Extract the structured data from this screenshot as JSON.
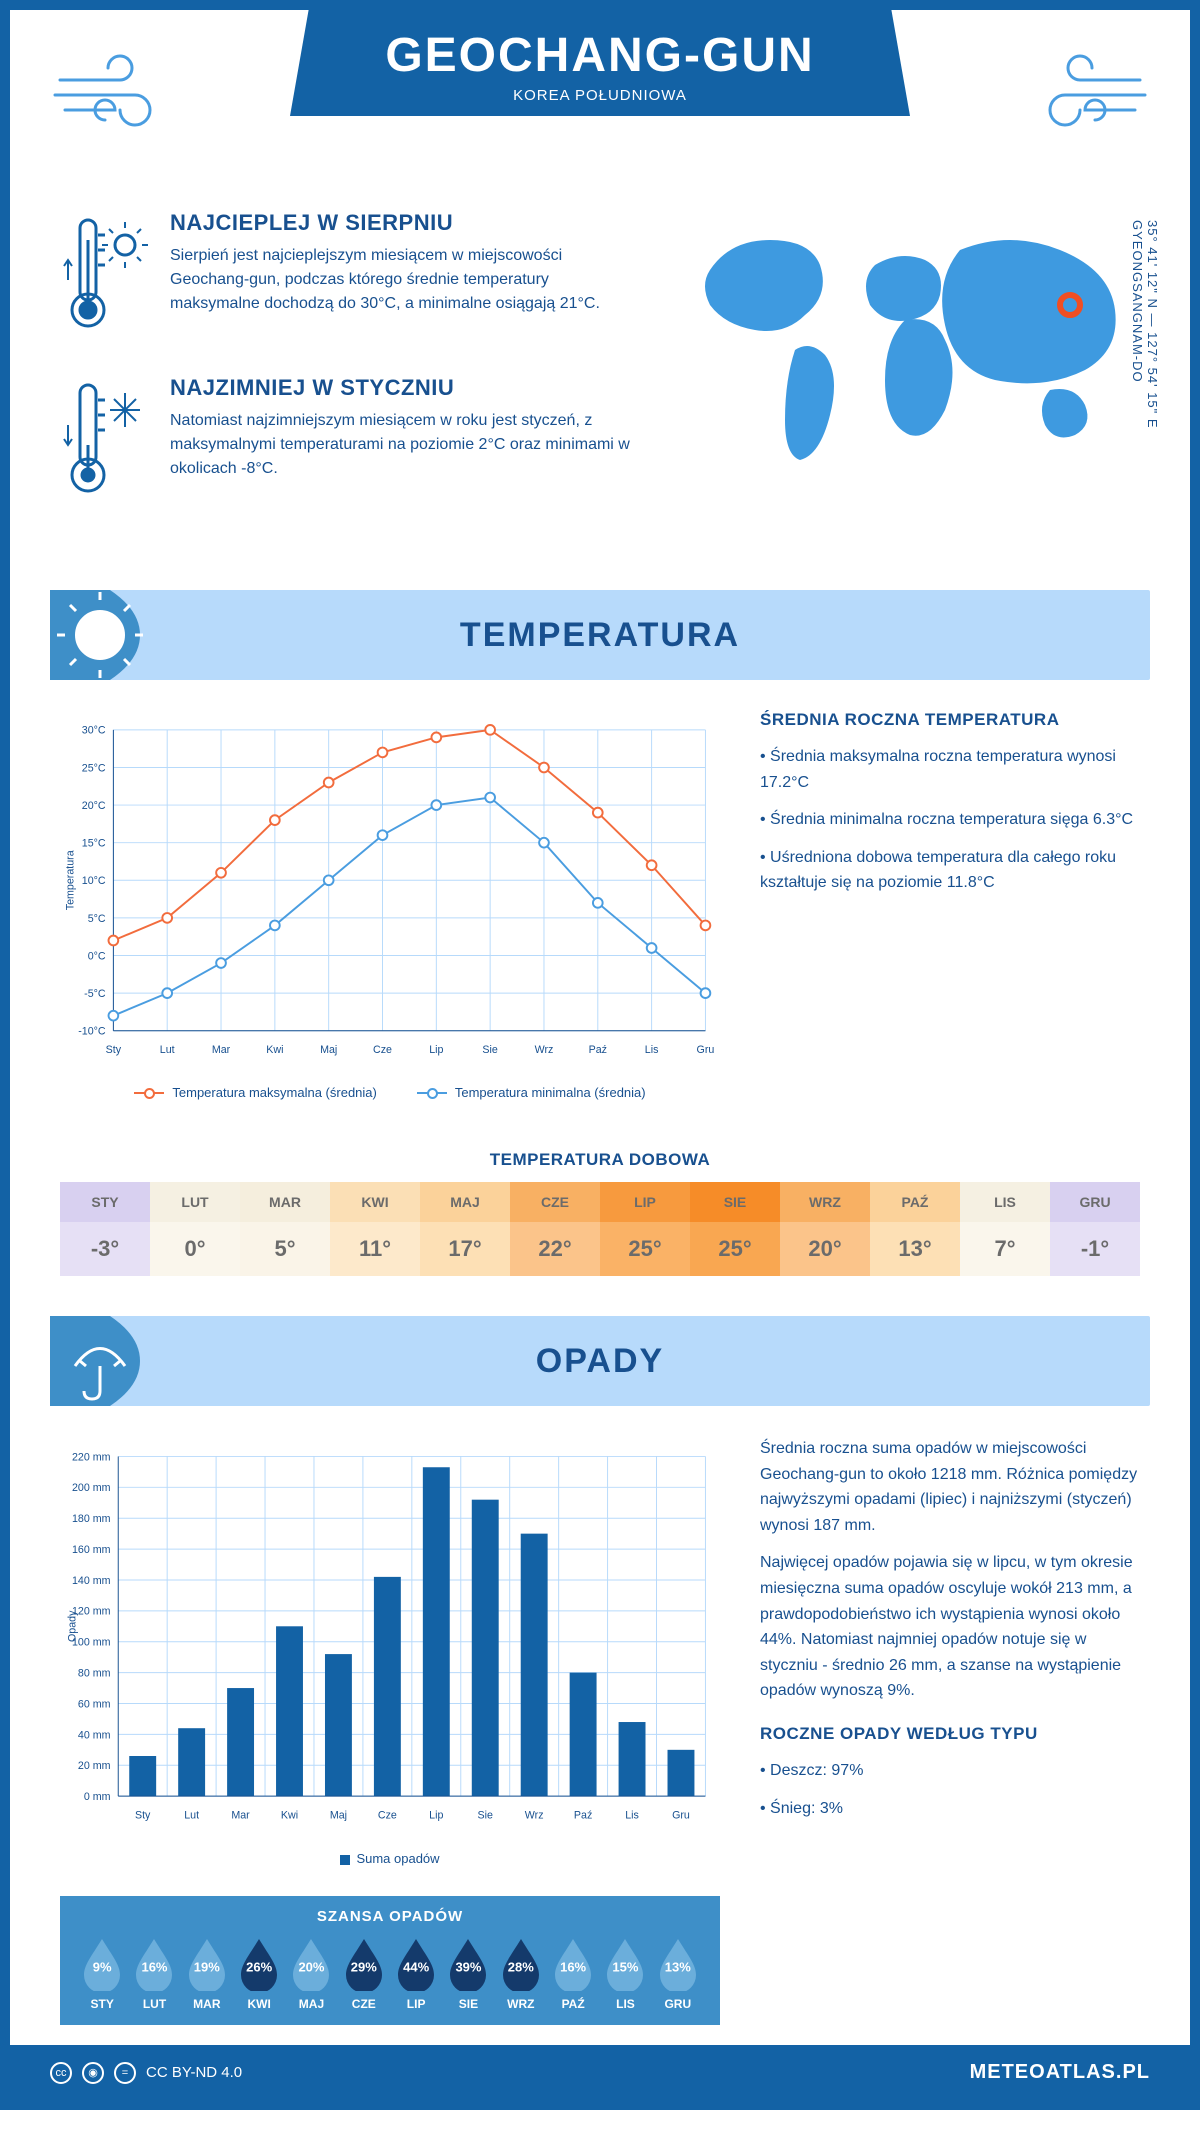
{
  "header": {
    "title": "GEOCHANG-GUN",
    "subtitle": "KOREA POŁUDNIOWA"
  },
  "coords": {
    "lat": "35° 41' 12\" N",
    "lon": "127° 54' 15\" E",
    "region": "GYEONGSANGNAM-DO"
  },
  "facts": {
    "warm": {
      "title": "NAJCIEPLEJ W SIERPNIU",
      "text": "Sierpień jest najcieplejszym miesiącem w miejscowości Geochang-gun, podczas którego średnie temperatury maksymalne dochodzą do 30°C, a minimalne osiągają 21°C."
    },
    "cold": {
      "title": "NAJZIMNIEJ W STYCZNIU",
      "text": "Natomiast najzimniejszym miesiącem w roku jest styczeń, z maksymalnymi temperaturami na poziomie 2°C oraz minimami w okolicach -8°C."
    }
  },
  "temperature": {
    "section_title": "TEMPERATURA",
    "chart": {
      "type": "line",
      "months": [
        "Sty",
        "Lut",
        "Mar",
        "Kwi",
        "Maj",
        "Cze",
        "Lip",
        "Sie",
        "Wrz",
        "Paź",
        "Lis",
        "Gru"
      ],
      "series": {
        "max": {
          "label": "Temperatura maksymalna (średnia)",
          "color": "#f26c3d",
          "values": [
            2,
            5,
            11,
            18,
            23,
            27,
            29,
            30,
            25,
            19,
            12,
            4
          ]
        },
        "min": {
          "label": "Temperatura minimalna (średnia)",
          "color": "#4a9de0",
          "values": [
            -8,
            -5,
            -1,
            4,
            10,
            16,
            20,
            21,
            15,
            7,
            1,
            -5
          ]
        }
      },
      "ylabel": "Temperatura",
      "ylim": [
        -10,
        30
      ],
      "ytick_step": 5,
      "grid_color": "#b7dafb",
      "background_color": "#ffffff",
      "line_width": 2,
      "marker_size": 5
    },
    "side": {
      "title": "ŚREDNIA ROCZNA TEMPERATURA",
      "items": [
        "Średnia maksymalna roczna temperatura wynosi 17.2°C",
        "Średnia minimalna roczna temperatura sięga 6.3°C",
        "Uśredniona dobowa temperatura dla całego roku kształtuje się na poziomie 11.8°C"
      ]
    },
    "daily": {
      "title": "TEMPERATURA DOBOWA",
      "months": [
        "STY",
        "LUT",
        "MAR",
        "KWI",
        "MAJ",
        "CZE",
        "LIP",
        "SIE",
        "WRZ",
        "PAŹ",
        "LIS",
        "GRU"
      ],
      "values": [
        "-3°",
        "0°",
        "5°",
        "11°",
        "17°",
        "22°",
        "25°",
        "25°",
        "20°",
        "13°",
        "7°",
        "-1°"
      ],
      "header_bg": [
        "#d8d0f0",
        "#f5f0e2",
        "#f5eedd",
        "#fbdfb5",
        "#fbd29a",
        "#f8b063",
        "#f79a3e",
        "#f68c28",
        "#f8b063",
        "#fbd29a",
        "#f5f0e2",
        "#d8d0f0"
      ],
      "value_bg": [
        "#e6e0f5",
        "#faf6ec",
        "#faf4e8",
        "#fde9cb",
        "#fde0b5",
        "#fbc48a",
        "#fab266",
        "#f9a751",
        "#fbc48a",
        "#fde0b5",
        "#faf6ec",
        "#e6e0f5"
      ],
      "text_color": "#6b6b6b"
    }
  },
  "precip": {
    "section_title": "OPADY",
    "chart": {
      "type": "bar",
      "months": [
        "Sty",
        "Lut",
        "Mar",
        "Kwi",
        "Maj",
        "Cze",
        "Lip",
        "Sie",
        "Wrz",
        "Paź",
        "Lis",
        "Gru"
      ],
      "values": [
        26,
        44,
        70,
        110,
        92,
        142,
        213,
        192,
        170,
        80,
        48,
        30
      ],
      "bar_color": "#1362a5",
      "ylabel": "Opady",
      "ylim": [
        0,
        220
      ],
      "ytick_step": 20,
      "legend_label": "Suma opadów",
      "grid_color": "#b7dafb",
      "bar_width": 0.55
    },
    "side": {
      "p1": "Średnia roczna suma opadów w miejscowości Geochang-gun to około 1218 mm. Różnica pomiędzy najwyższymi opadami (lipiec) i najniższymi (styczeń) wynosi 187 mm.",
      "p2": "Najwięcej opadów pojawia się w lipcu, w tym okresie miesięczna suma opadów oscyluje wokół 213 mm, a prawdopodobieństwo ich wystąpienia wynosi około 44%. Natomiast najmniej opadów notuje się w styczniu - średnio 26 mm, a szanse na wystąpienie opadów wynoszą 9%.",
      "type_title": "ROCZNE OPADY WEDŁUG TYPU",
      "types": [
        "Deszcz: 97%",
        "Śnieg: 3%"
      ]
    },
    "chance": {
      "title": "SZANSA OPADÓW",
      "months": [
        "STY",
        "LUT",
        "MAR",
        "KWI",
        "MAJ",
        "CZE",
        "LIP",
        "SIE",
        "WRZ",
        "PAŹ",
        "LIS",
        "GRU"
      ],
      "pct": [
        "9%",
        "16%",
        "19%",
        "26%",
        "20%",
        "29%",
        "44%",
        "39%",
        "28%",
        "16%",
        "15%",
        "13%"
      ],
      "light_color": "#6baedb",
      "dark_color": "#143a6b",
      "dark_threshold": 25
    }
  },
  "footer": {
    "license": "CC BY-ND 4.0",
    "site": "METEOATLAS.PL"
  }
}
